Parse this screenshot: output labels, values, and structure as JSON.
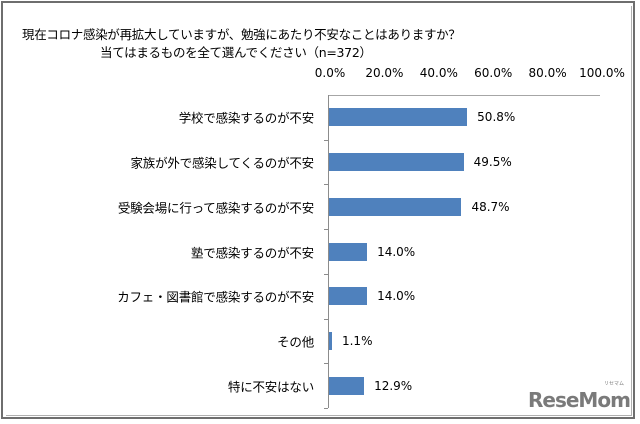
{
  "title": {
    "line1": "現在コロナ感染が再拡大していますが、勉強にあたり不安なことはありますか？",
    "line2": "当てはまるものを全て選んでください（n=372）"
  },
  "watermark": {
    "text": "ReseMom",
    "ruby": "リセマム"
  },
  "chart_data": {
    "type": "bar",
    "orientation": "horizontal",
    "title": "現在コロナ感染が再拡大していますが、勉強にあたり不安なことはありますか？ 当てはまるものを全て選んでください（n=372）",
    "xlabel": "",
    "ylabel": "",
    "xlim": [
      0,
      100
    ],
    "x_ticks": [
      "0.0%",
      "20.0%",
      "40.0%",
      "60.0%",
      "80.0%",
      "100.0%"
    ],
    "x_axis_position": "top",
    "grid": false,
    "legend": null,
    "bar_color": "#4f81bd",
    "categories": [
      "学校で感染するのが不安",
      "家族が外で感染してくるのが不安",
      "受験会場に行って感染するのが不安",
      "塾で感染するのが不安",
      "カフェ・図書館で感染するのが不安",
      "その他",
      "特に不安はない"
    ],
    "values": [
      50.8,
      49.5,
      48.7,
      14.0,
      14.0,
      1.1,
      12.9
    ],
    "value_labels": [
      "50.8%",
      "49.5%",
      "48.7%",
      "14.0%",
      "14.0%",
      "1.1%",
      "12.9%"
    ]
  }
}
